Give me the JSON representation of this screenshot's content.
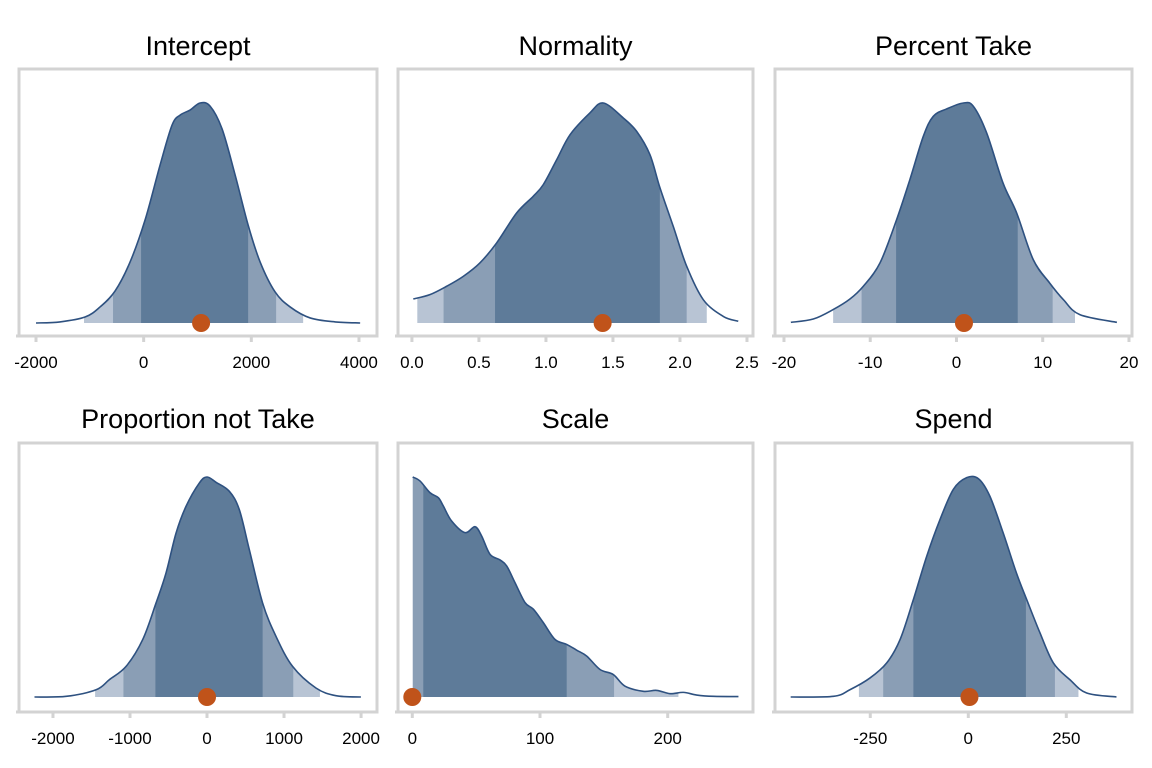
{
  "chart_data": [
    {
      "type": "area",
      "title": "Intercept",
      "xlim": [
        -2316,
        4335
      ],
      "ticks": [
        -2000,
        0,
        2000,
        4000
      ],
      "tick_labels": [
        "-2000",
        "0",
        "2000",
        "4000"
      ],
      "density": {
        "x": [
          -2000,
          -1554,
          -1089,
          -810,
          -532,
          -253,
          26,
          305,
          528,
          677,
          862,
          1048,
          1234,
          1457,
          1699,
          1941,
          2164,
          2442,
          2721,
          3093,
          3558,
          4022
        ],
        "y": [
          0,
          0.005,
          0.027,
          0.073,
          0.145,
          0.277,
          0.468,
          0.718,
          0.9,
          0.945,
          0.968,
          1,
          0.986,
          0.882,
          0.673,
          0.445,
          0.277,
          0.141,
          0.073,
          0.023,
          0.005,
          0
        ]
      },
      "intervals": {
        "outer": [
          -1108,
          2963
        ],
        "middle": [
          -569,
          2461
        ],
        "inner": [
          -48,
          1941
        ]
      },
      "point_estimate": 1067
    },
    {
      "type": "area",
      "title": "Normality",
      "xlim": [
        -0.104,
        2.545
      ],
      "ticks": [
        0,
        0.5,
        1,
        1.5,
        2,
        2.5
      ],
      "tick_labels": [
        "0.0",
        "0.5",
        "1.0",
        "1.5",
        "2.0",
        "2.5"
      ],
      "density": {
        "x": [
          0.01,
          0.134,
          0.259,
          0.383,
          0.507,
          0.632,
          0.781,
          0.905,
          0.98,
          1.08,
          1.18,
          1.328,
          1.428,
          1.577,
          1.677,
          1.776,
          1.851,
          1.95,
          2.05,
          2.174,
          2.323,
          2.435
        ],
        "y": [
          0.109,
          0.129,
          0.167,
          0.212,
          0.273,
          0.364,
          0.5,
          0.576,
          0.629,
          0.742,
          0.856,
          0.955,
          1,
          0.932,
          0.871,
          0.765,
          0.614,
          0.439,
          0.258,
          0.106,
          0.03,
          0.008
        ]
      },
      "intervals": {
        "outer": [
          0.04,
          2.2
        ],
        "middle": [
          0.236,
          2.05
        ],
        "inner": [
          0.62,
          1.85
        ]
      },
      "point_estimate": 1.423
    },
    {
      "type": "area",
      "title": "Percent Take",
      "xlim": [
        -21.04,
        20.35
      ],
      "ticks": [
        -20,
        -10,
        0,
        10,
        20
      ],
      "tick_labels": [
        "-20",
        "-10",
        "0",
        "10",
        "20"
      ],
      "density": {
        "x": [
          -19.2,
          -16.6,
          -14.3,
          -12.35,
          -10.8,
          -8.87,
          -6.94,
          -5.4,
          -3.85,
          -2.7,
          -1.14,
          0.8,
          1.95,
          3.5,
          5.4,
          6.98,
          8.9,
          10.8,
          12.4,
          14.3,
          18.6
        ],
        "y": [
          0.003,
          0.018,
          0.061,
          0.109,
          0.167,
          0.273,
          0.47,
          0.652,
          0.848,
          0.939,
          0.973,
          1,
          0.985,
          0.864,
          0.636,
          0.5,
          0.288,
          0.182,
          0.106,
          0.038,
          0.003
        ]
      },
      "intervals": {
        "outer": [
          -14.3,
          13.74
        ],
        "middle": [
          -11.0,
          11.15
        ],
        "inner": [
          -7.0,
          7.1
        ]
      },
      "point_estimate": 0.87
    },
    {
      "type": "area",
      "title": "Proportion not Take",
      "xlim": [
        -2441,
        2207
      ],
      "ticks": [
        -2000,
        -1000,
        0,
        1000,
        2000
      ],
      "tick_labels": [
        "-2000",
        "-1000",
        "0",
        "1000",
        "2000"
      ],
      "density": {
        "x": [
          -2240,
          -1829,
          -1440,
          -1267,
          -1051,
          -835,
          -662,
          -532,
          -402,
          -272,
          -99,
          0,
          117,
          290,
          419,
          549,
          722,
          895,
          1111,
          1414,
          1674,
          1998
        ],
        "y": [
          0,
          0.003,
          0.033,
          0.079,
          0.139,
          0.261,
          0.427,
          0.564,
          0.745,
          0.867,
          0.973,
          1,
          0.976,
          0.935,
          0.852,
          0.67,
          0.427,
          0.276,
          0.139,
          0.041,
          0.006,
          0
        ]
      },
      "intervals": {
        "outer": [
          -1453,
          1466
        ],
        "middle": [
          -1085,
          1120
        ],
        "inner": [
          -670,
          722
        ]
      },
      "point_estimate": 0
    },
    {
      "type": "area",
      "title": "Scale",
      "xlim": [
        -11.2,
        266.8
      ],
      "ticks": [
        0,
        100,
        200
      ],
      "tick_labels": [
        "0",
        "100",
        "200"
      ],
      "density": {
        "x": [
          0.3,
          6,
          13.8,
          20.4,
          24.3,
          30.8,
          41.3,
          49.1,
          54.3,
          60.8,
          68.7,
          73.9,
          80.4,
          88.3,
          94.8,
          102.6,
          111.7,
          120.9,
          128.7,
          136.6,
          147,
          157.4,
          166.6,
          180.9,
          191.4,
          201.8,
          212.3,
          222.7,
          235.8,
          255.4
        ],
        "y": [
          1,
          0.982,
          0.929,
          0.906,
          0.868,
          0.8,
          0.747,
          0.774,
          0.732,
          0.649,
          0.623,
          0.596,
          0.52,
          0.429,
          0.399,
          0.338,
          0.262,
          0.239,
          0.213,
          0.186,
          0.125,
          0.102,
          0.049,
          0.026,
          0.03,
          0.015,
          0.021,
          0.009,
          0.003,
          0.002
        ]
      },
      "intervals": {
        "outer": [
          0.3,
          208.4
        ],
        "middle": [
          0.3,
          158
        ],
        "inner": [
          8.6,
          120.9
        ]
      },
      "point_estimate": 0
    },
    {
      "type": "area",
      "title": "Spend",
      "xlim": [
        -493,
        417.6
      ],
      "ticks": [
        -250,
        0,
        250
      ],
      "tick_labels": [
        "-250",
        "0",
        "250"
      ],
      "density": {
        "x": [
          -453,
          -344,
          -302,
          -251,
          -208,
          -174,
          -140,
          -106,
          -72,
          -38,
          -4,
          26,
          55,
          89,
          123,
          149,
          183,
          217,
          259,
          302,
          378
        ],
        "y": [
          0,
          0.003,
          0.033,
          0.086,
          0.155,
          0.261,
          0.443,
          0.64,
          0.807,
          0.944,
          0.997,
          0.992,
          0.913,
          0.746,
          0.563,
          0.443,
          0.291,
          0.155,
          0.079,
          0.018,
          0
        ]
      },
      "intervals": {
        "outer": [
          -279,
          281
        ],
        "middle": [
          -217,
          221
        ],
        "inner": [
          -140,
          147
        ]
      },
      "point_estimate": 3
    }
  ],
  "colors": {
    "inner_fill": "#5e7b99",
    "middle_fill": "#8a9eb5",
    "outer_fill": "#b8c4d4",
    "density_line": "#2e5180",
    "point": "#c0531a",
    "frame": "#d3d3d3"
  }
}
